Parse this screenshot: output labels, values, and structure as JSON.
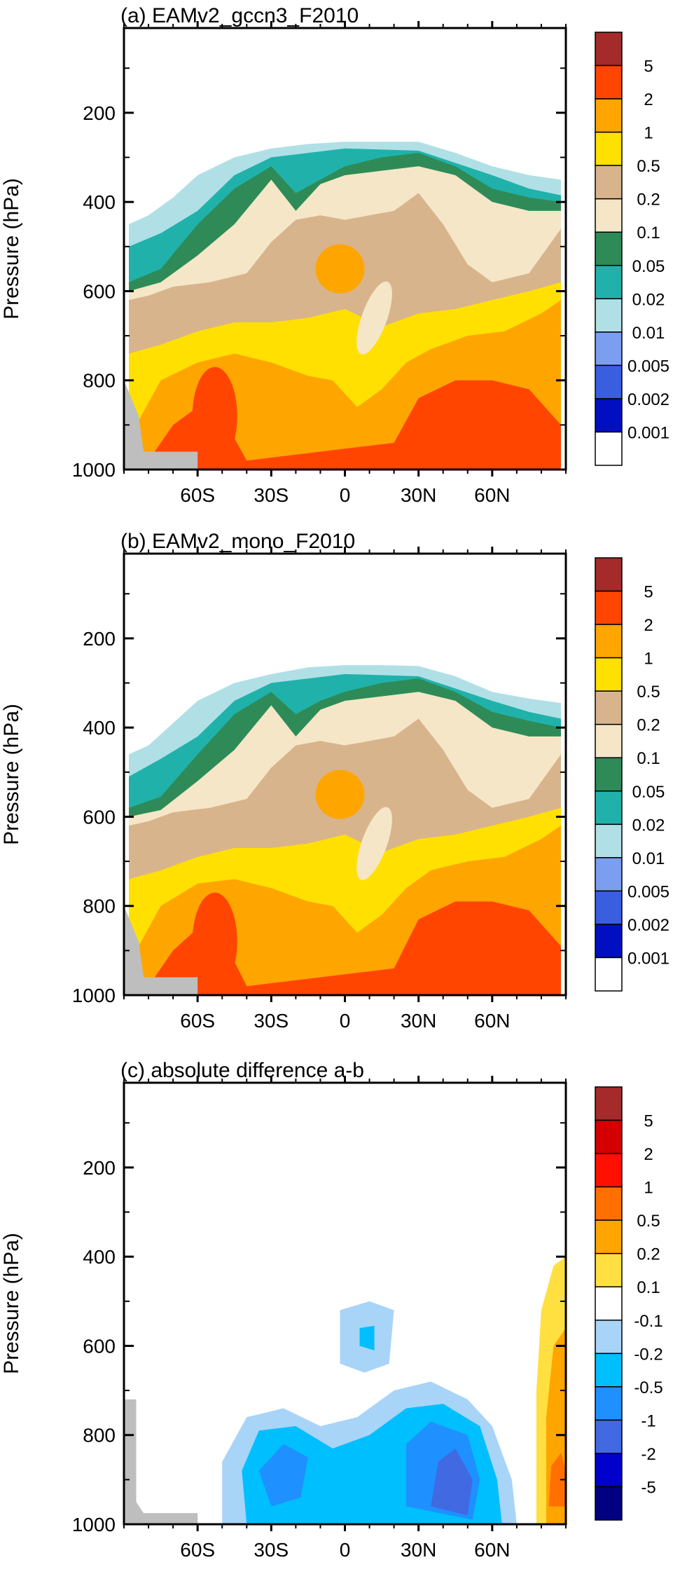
{
  "chart_data": [
    {
      "type": "heatmap",
      "title": "(a) EAMv2_gccn3_F2010",
      "ylabel": "Pressure (hPa)",
      "xlabel": "",
      "xlim": [
        -90,
        90
      ],
      "ylim": [
        1000,
        10
      ],
      "x_ticks": [
        "60S",
        "30S",
        "0",
        "30N",
        "60N"
      ],
      "x_tick_values": [
        -60,
        -30,
        0,
        30,
        60
      ],
      "y_ticks": [
        "200",
        "400",
        "600",
        "800",
        "1000"
      ],
      "y_tick_values": [
        200,
        400,
        600,
        800,
        1000
      ],
      "colorbar_labels": [
        "5",
        "2",
        "1",
        "0.5",
        "0.2",
        "0.1",
        "0.05",
        "0.02",
        "0.01",
        "0.005",
        "0.002",
        "0.001"
      ],
      "colorbar_colors": [
        "#a52a2a",
        "#ff4500",
        "#ffa500",
        "#ffe000",
        "#d8b48c",
        "#f5e6c8",
        "#2e8b57",
        "#20b2aa",
        "#b0e0e6",
        "#7b9ef0",
        "#3a5ee0",
        "#0010c0",
        "#ffffff"
      ],
      "regions": [
        {
          "level": 4,
          "lat": [
            -88,
            -80,
            -70,
            -60,
            -45,
            -30,
            -15,
            0,
            15,
            30,
            45,
            60,
            75,
            88
          ],
          "p": [
            450,
            430,
            390,
            340,
            300,
            280,
            270,
            265,
            265,
            265,
            290,
            320,
            340,
            350
          ]
        },
        {
          "level": 5,
          "lat": [
            -88,
            -75,
            -60,
            -45,
            -30,
            0,
            30,
            60,
            75,
            88
          ],
          "p": [
            500,
            470,
            420,
            340,
            300,
            280,
            285,
            340,
            370,
            385
          ]
        },
        {
          "level": 6,
          "lat": [
            -88,
            -75,
            -60,
            -45,
            -30,
            -20,
            -10,
            0,
            15,
            30,
            45,
            60,
            75,
            88
          ],
          "p": [
            580,
            550,
            450,
            370,
            320,
            380,
            350,
            320,
            300,
            290,
            320,
            370,
            390,
            400
          ]
        },
        {
          "level": 7,
          "lat": [
            -88,
            -75,
            -60,
            -45,
            -30,
            -20,
            -10,
            0,
            15,
            30,
            45,
            60,
            75,
            88
          ],
          "p": [
            600,
            580,
            520,
            450,
            350,
            420,
            360,
            340,
            330,
            320,
            340,
            400,
            420,
            420
          ]
        },
        {
          "level": 8,
          "lat": [
            -88,
            -80,
            -70,
            -55,
            -40,
            -30,
            -20,
            -10,
            0,
            10,
            20,
            30,
            40,
            50,
            60,
            75,
            88
          ],
          "p": [
            620,
            610,
            590,
            580,
            560,
            490,
            440,
            430,
            440,
            430,
            420,
            380,
            450,
            540,
            580,
            560,
            460
          ]
        },
        {
          "level": 9,
          "lat": [
            -88,
            -75,
            -60,
            -45,
            -30,
            -15,
            0,
            15,
            30,
            45,
            60,
            75,
            88
          ],
          "p": [
            740,
            720,
            690,
            670,
            670,
            660,
            640,
            680,
            650,
            640,
            620,
            600,
            580
          ]
        },
        {
          "level": 10,
          "lat": [
            -85,
            -75,
            -60,
            -45,
            -30,
            -15,
            -5,
            5,
            15,
            25,
            35,
            50,
            65,
            80,
            88
          ],
          "p": [
            900,
            800,
            760,
            740,
            760,
            790,
            800,
            860,
            820,
            760,
            730,
            700,
            690,
            650,
            620
          ]
        },
        {
          "level": 11,
          "lat": [
            -80,
            -70,
            -60,
            -50,
            -40,
            20,
            30,
            45,
            60,
            75,
            88
          ],
          "p": [
            980,
            900,
            860,
            880,
            980,
            940,
            840,
            800,
            800,
            820,
            900
          ]
        }
      ],
      "has_small_high_patch": true
    },
    {
      "type": "heatmap",
      "title": "(b) EAMv2_mono_F2010",
      "ylabel": "Pressure (hPa)",
      "xlabel": "",
      "xlim": [
        -90,
        90
      ],
      "ylim": [
        1000,
        10
      ],
      "x_ticks": [
        "60S",
        "30S",
        "0",
        "30N",
        "60N"
      ],
      "x_tick_values": [
        -60,
        -30,
        0,
        30,
        60
      ],
      "y_ticks": [
        "200",
        "400",
        "600",
        "800",
        "1000"
      ],
      "y_tick_values": [
        200,
        400,
        600,
        800,
        1000
      ],
      "colorbar_labels": [
        "5",
        "2",
        "1",
        "0.5",
        "0.2",
        "0.1",
        "0.05",
        "0.02",
        "0.01",
        "0.005",
        "0.002",
        "0.001"
      ],
      "colorbar_colors": [
        "#a52a2a",
        "#ff4500",
        "#ffa500",
        "#ffe000",
        "#d8b48c",
        "#f5e6c8",
        "#2e8b57",
        "#20b2aa",
        "#b0e0e6",
        "#7b9ef0",
        "#3a5ee0",
        "#0010c0",
        "#ffffff"
      ],
      "regions": [
        {
          "level": 4,
          "lat": [
            -88,
            -80,
            -70,
            -60,
            -45,
            -30,
            -15,
            0,
            15,
            30,
            45,
            60,
            75,
            88
          ],
          "p": [
            460,
            440,
            390,
            340,
            300,
            280,
            265,
            260,
            260,
            262,
            285,
            320,
            335,
            345
          ]
        },
        {
          "level": 5,
          "lat": [
            -88,
            -75,
            -60,
            -45,
            -30,
            0,
            30,
            60,
            75,
            88
          ],
          "p": [
            510,
            470,
            420,
            340,
            300,
            280,
            285,
            340,
            365,
            380
          ]
        },
        {
          "level": 6,
          "lat": [
            -88,
            -75,
            -60,
            -45,
            -30,
            -20,
            -10,
            0,
            15,
            30,
            45,
            60,
            75,
            88
          ],
          "p": [
            580,
            555,
            460,
            370,
            320,
            370,
            340,
            320,
            300,
            290,
            320,
            365,
            385,
            400
          ]
        },
        {
          "level": 7,
          "lat": [
            -88,
            -75,
            -60,
            -45,
            -30,
            -20,
            -10,
            0,
            15,
            30,
            45,
            60,
            75,
            88
          ],
          "p": [
            600,
            585,
            520,
            450,
            350,
            420,
            360,
            340,
            330,
            320,
            340,
            400,
            420,
            420
          ]
        },
        {
          "level": 8,
          "lat": [
            -88,
            -80,
            -70,
            -55,
            -40,
            -30,
            -20,
            -10,
            0,
            10,
            20,
            30,
            40,
            50,
            60,
            75,
            88
          ],
          "p": [
            620,
            610,
            590,
            580,
            560,
            490,
            440,
            430,
            440,
            430,
            420,
            380,
            450,
            540,
            580,
            560,
            460
          ]
        },
        {
          "level": 9,
          "lat": [
            -88,
            -75,
            -60,
            -45,
            -30,
            -15,
            0,
            15,
            30,
            45,
            60,
            75,
            88
          ],
          "p": [
            740,
            720,
            690,
            670,
            670,
            660,
            640,
            680,
            650,
            640,
            620,
            600,
            580
          ]
        },
        {
          "level": 10,
          "lat": [
            -85,
            -75,
            -60,
            -45,
            -30,
            -15,
            -5,
            5,
            15,
            25,
            35,
            50,
            65,
            80,
            88
          ],
          "p": [
            900,
            800,
            750,
            740,
            760,
            790,
            800,
            860,
            820,
            760,
            720,
            700,
            690,
            650,
            620
          ]
        },
        {
          "level": 11,
          "lat": [
            -80,
            -70,
            -60,
            -50,
            -40,
            20,
            30,
            45,
            60,
            75,
            88
          ],
          "p": [
            980,
            900,
            850,
            870,
            980,
            940,
            830,
            790,
            790,
            810,
            890
          ]
        }
      ],
      "has_small_high_patch": true
    },
    {
      "type": "heatmap",
      "title": "(c) absolute difference a-b",
      "ylabel": "Pressure (hPa)",
      "xlabel": "",
      "xlim": [
        -90,
        90
      ],
      "ylim": [
        1000,
        10
      ],
      "x_ticks": [
        "60S",
        "30S",
        "0",
        "30N",
        "60N"
      ],
      "x_tick_values": [
        -60,
        -30,
        0,
        30,
        60
      ],
      "y_ticks": [
        "200",
        "400",
        "600",
        "800",
        "1000"
      ],
      "y_tick_values": [
        200,
        400,
        600,
        800,
        1000
      ],
      "colorbar_labels": [
        "5",
        "2",
        "1",
        "0.5",
        "0.2",
        "0.1",
        "-0.1",
        "-0.2",
        "-0.5",
        "-1",
        "-2",
        "-5"
      ],
      "colorbar_colors": [
        "#a52a2a",
        "#d40000",
        "#ff1000",
        "#ff7000",
        "#ffa500",
        "#ffe040",
        "#ffffff",
        "#a8d4f8",
        "#00bfff",
        "#1e90ff",
        "#4169e1",
        "#0000cd",
        "#000080"
      ]
    }
  ]
}
